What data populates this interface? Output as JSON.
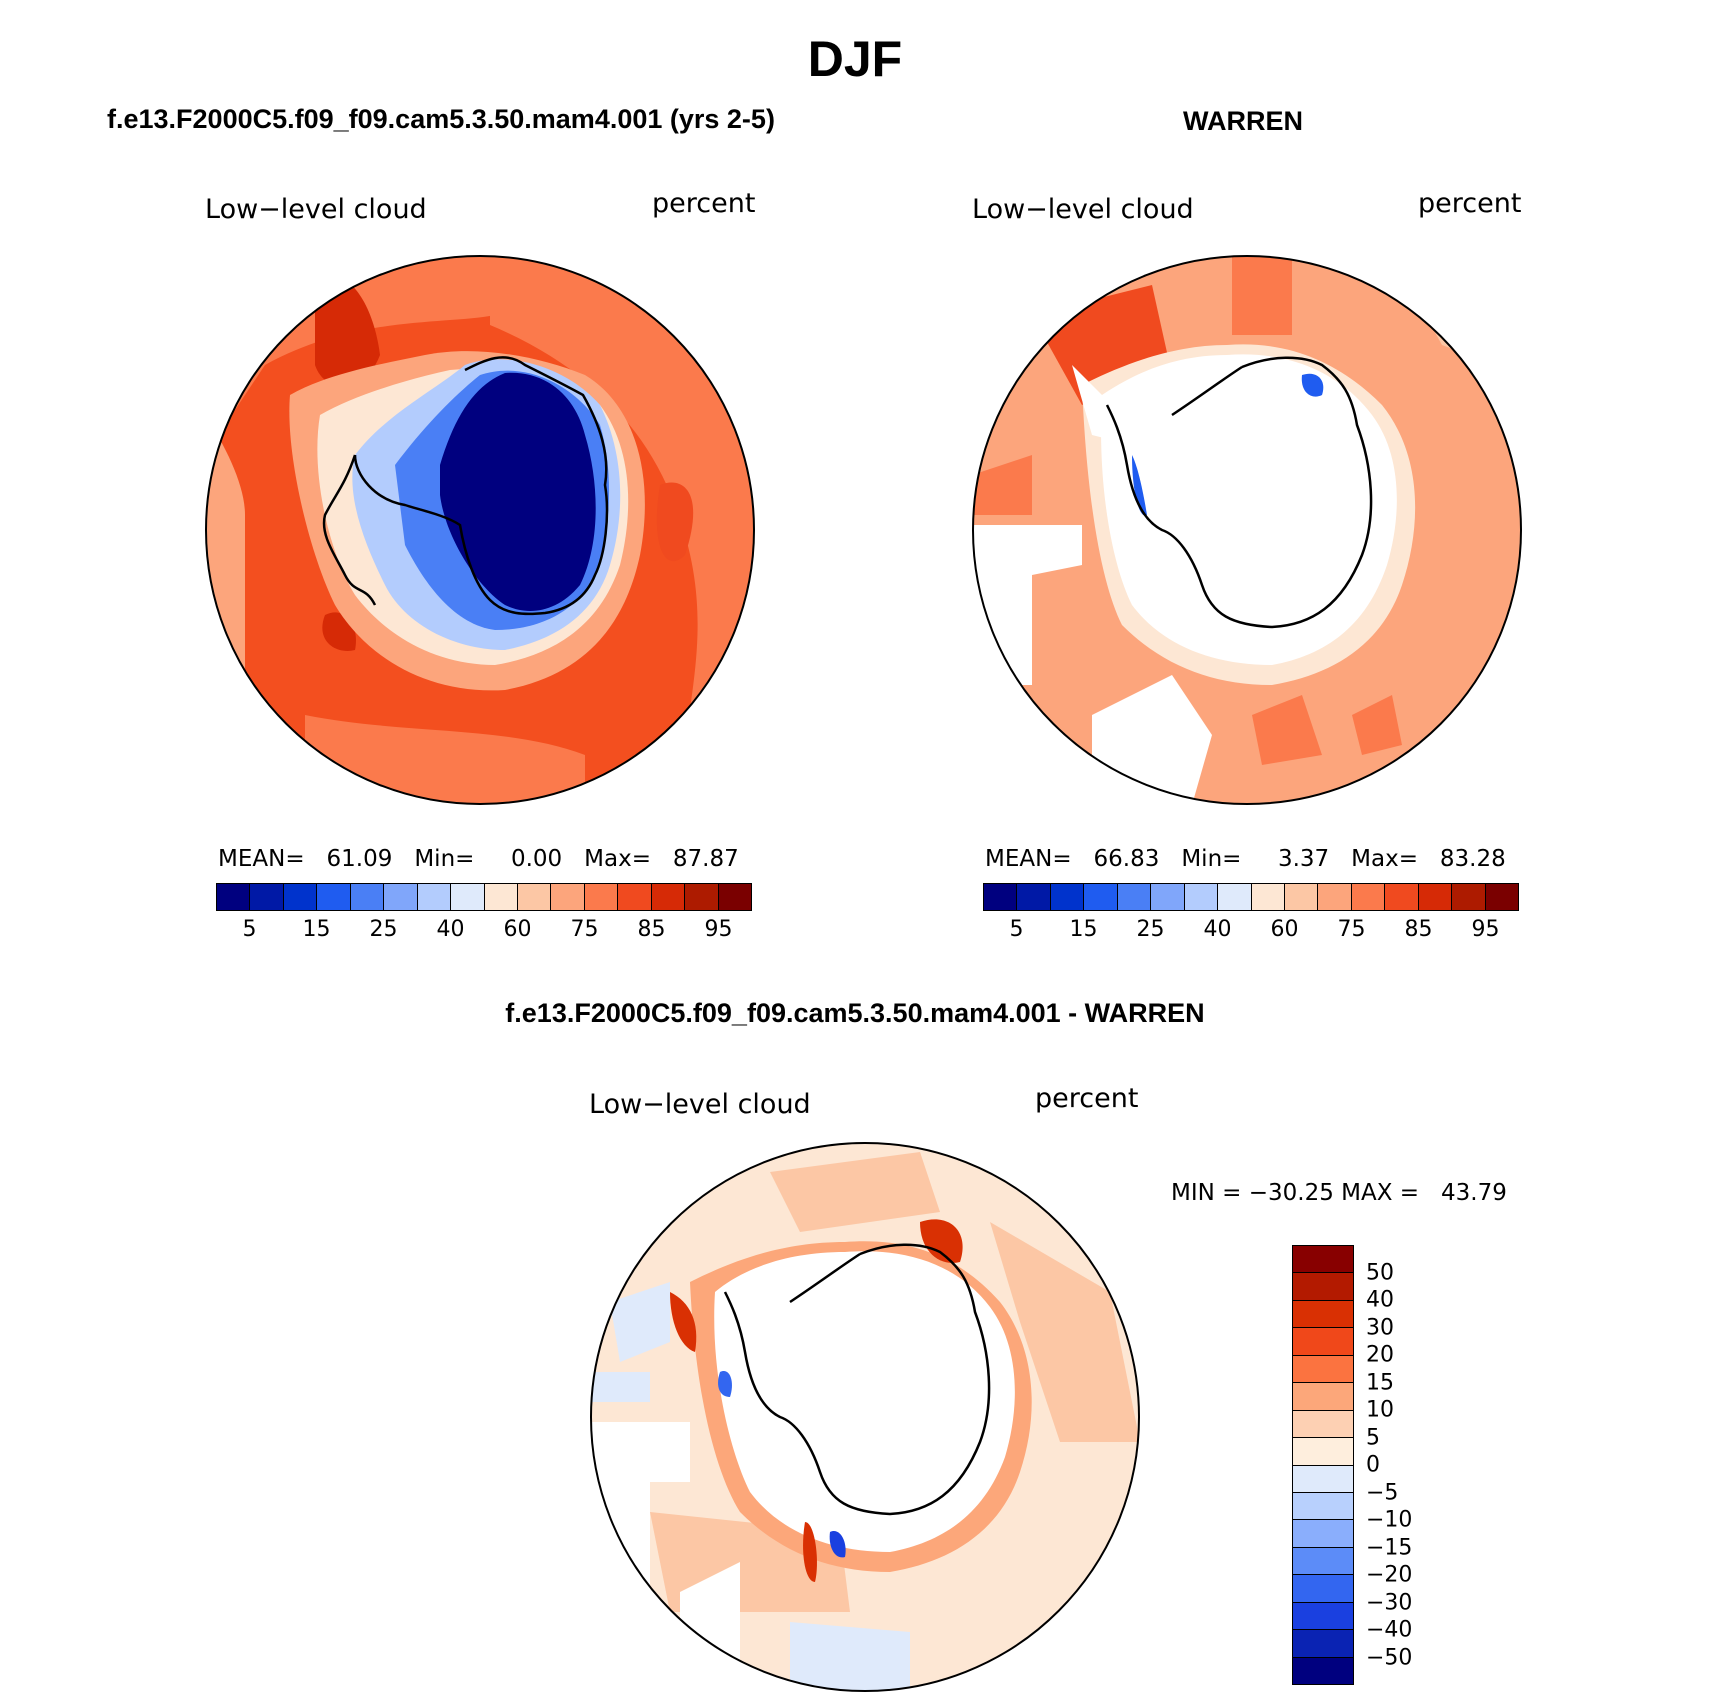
{
  "figure": {
    "title": "DJF"
  },
  "panels": {
    "model": {
      "title": "f.e13.F2000C5.f09_f09.cam5.3.50.mam4.001 (yrs 2-5)",
      "left_label": "Low−level cloud",
      "right_label": "percent",
      "stats": {
        "mean_label": "MEAN=",
        "mean": "61.09",
        "min_label": "Min=",
        "min": "0.00",
        "max_label": "Max=",
        "max": "87.87"
      }
    },
    "obs": {
      "title": "WARREN",
      "left_label": "Low−level cloud",
      "right_label": "percent",
      "stats": {
        "mean_label": "MEAN=",
        "mean": "66.83",
        "min_label": "Min=",
        "min": "3.37",
        "max_label": "Max=",
        "max": "83.28"
      }
    },
    "diff": {
      "title": "f.e13.F2000C5.f09_f09.cam5.3.50.mam4.001 - WARREN",
      "left_label": "Low−level cloud",
      "right_label": "percent",
      "minmax": "MIN = −30.25 MAX =   43.79"
    }
  },
  "colorbar_abs": {
    "colors": [
      "#00007f",
      "#0019a6",
      "#0033cc",
      "#1f5cf0",
      "#4a7ff5",
      "#80a6fa",
      "#b3ccfd",
      "#dfeafb",
      "#fde7d4",
      "#fcc7a5",
      "#fca57c",
      "#fb7a4c",
      "#f04a1f",
      "#d62a06",
      "#ad1b00",
      "#7a0000"
    ],
    "labels": [
      "5",
      "15",
      "25",
      "40",
      "60",
      "75",
      "85",
      "95"
    ]
  },
  "colorbar_diff": {
    "colors_top_to_bottom": [
      "#880000",
      "#b31a00",
      "#d93003",
      "#f0481a",
      "#fb7340",
      "#fca77a",
      "#fdd0b3",
      "#feeedd",
      "#dfeafb",
      "#b8d0fd",
      "#8aaefc",
      "#5c8cf8",
      "#3366f0",
      "#1a40e0",
      "#0a23b3",
      "#00007f"
    ],
    "labels": [
      "50",
      "40",
      "30",
      "20",
      "15",
      "10",
      "5",
      "0",
      "−5",
      "−10",
      "−15",
      "−20",
      "−30",
      "−40",
      "−50"
    ]
  },
  "colors": {
    "ocean_model": "#f34f1f",
    "ocean_obs": "#fca57c",
    "ocean_diff": "#fcc7a5",
    "ice_deep": "#00007f",
    "missing": "#ffffff",
    "coast": "#000000"
  }
}
